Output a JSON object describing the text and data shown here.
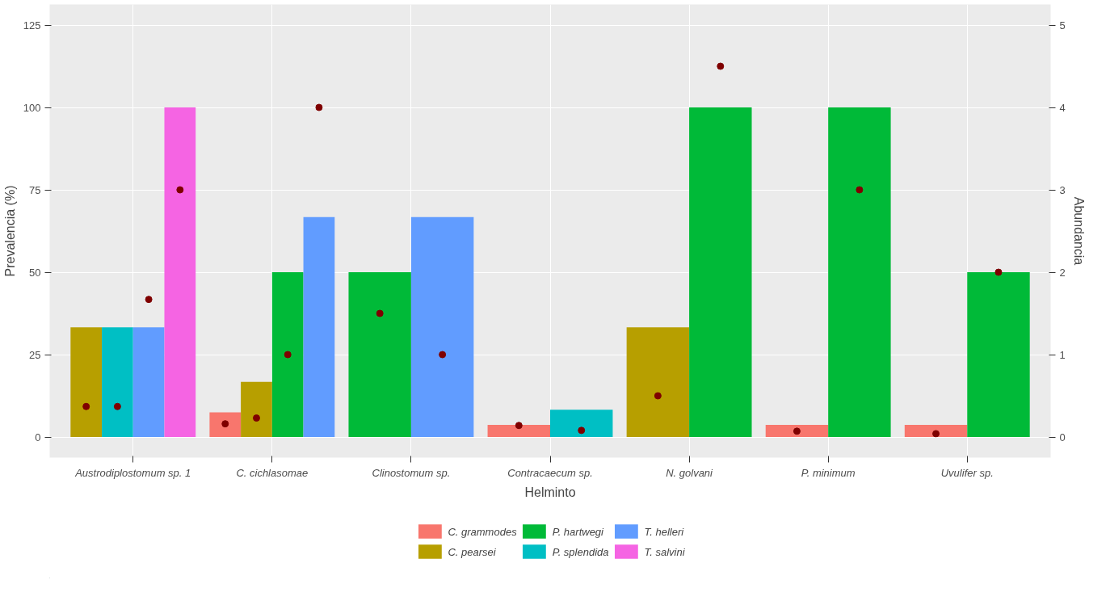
{
  "chart_data": {
    "type": "bar",
    "xlabel": "Helminto",
    "ylabel": "Prevalencia (%)",
    "y2label": "Abundancia",
    "categories": [
      "Austrodiplostomum sp. 1",
      "C. cichlasomae",
      "Clinostomum sp.",
      "Contracaecum sp.",
      "N. golvani",
      "P. minimum",
      "Uvulifer sp."
    ],
    "ylim": [
      -6.25,
      131.25
    ],
    "yticks": [
      0,
      25,
      50,
      75,
      100,
      125
    ],
    "y2lim": [
      -0.25,
      5.25
    ],
    "y2ticks": [
      0,
      1,
      2,
      3,
      4,
      5
    ],
    "grid": true,
    "legend": "bottom",
    "series": [
      {
        "name": "C. grammodes",
        "color": "#f8766d",
        "values": [
          null,
          7.5,
          null,
          3.7,
          null,
          3.7,
          3.7
        ]
      },
      {
        "name": "C. pearsei",
        "color": "#b79f00",
        "values": [
          33.3,
          16.7,
          null,
          null,
          33.3,
          null,
          null
        ]
      },
      {
        "name": "P. hartwegi",
        "color": "#00ba38",
        "values": [
          null,
          50,
          50,
          null,
          100,
          100,
          50
        ]
      },
      {
        "name": "P. splendida",
        "color": "#00bfc4",
        "values": [
          33.3,
          null,
          null,
          8.3,
          null,
          null,
          null
        ]
      },
      {
        "name": "T. helleri",
        "color": "#619cff",
        "values": [
          33.3,
          66.7,
          66.7,
          null,
          null,
          null,
          null
        ]
      },
      {
        "name": "T. salvini",
        "color": "#f564e3",
        "values": [
          100,
          null,
          null,
          null,
          null,
          null,
          null
        ]
      },
      {
        "type": "scatter",
        "axis": "y2",
        "color": "#7f0000",
        "values": [
          null,
          0.16,
          null,
          0.14,
          null,
          0.07,
          0.04
        ]
      },
      {
        "type": "scatter",
        "axis": "y2",
        "color": "#7f0000",
        "values": [
          0.37,
          0.23,
          null,
          null,
          0.5,
          null,
          null
        ]
      },
      {
        "type": "scatter",
        "axis": "y2",
        "color": "#7f0000",
        "values": [
          null,
          1.0,
          1.5,
          null,
          4.5,
          3.0,
          2.0
        ]
      },
      {
        "type": "scatter",
        "axis": "y2",
        "color": "#7f0000",
        "values": [
          0.37,
          null,
          null,
          0.08,
          null,
          null,
          null
        ]
      },
      {
        "type": "scatter",
        "axis": "y2",
        "color": "#7f0000",
        "values": [
          1.67,
          4.0,
          1.0,
          null,
          null,
          null,
          null
        ]
      },
      {
        "type": "scatter",
        "axis": "y2",
        "color": "#7f0000",
        "values": [
          3.0,
          null,
          null,
          null,
          null,
          null,
          null
        ]
      }
    ]
  }
}
